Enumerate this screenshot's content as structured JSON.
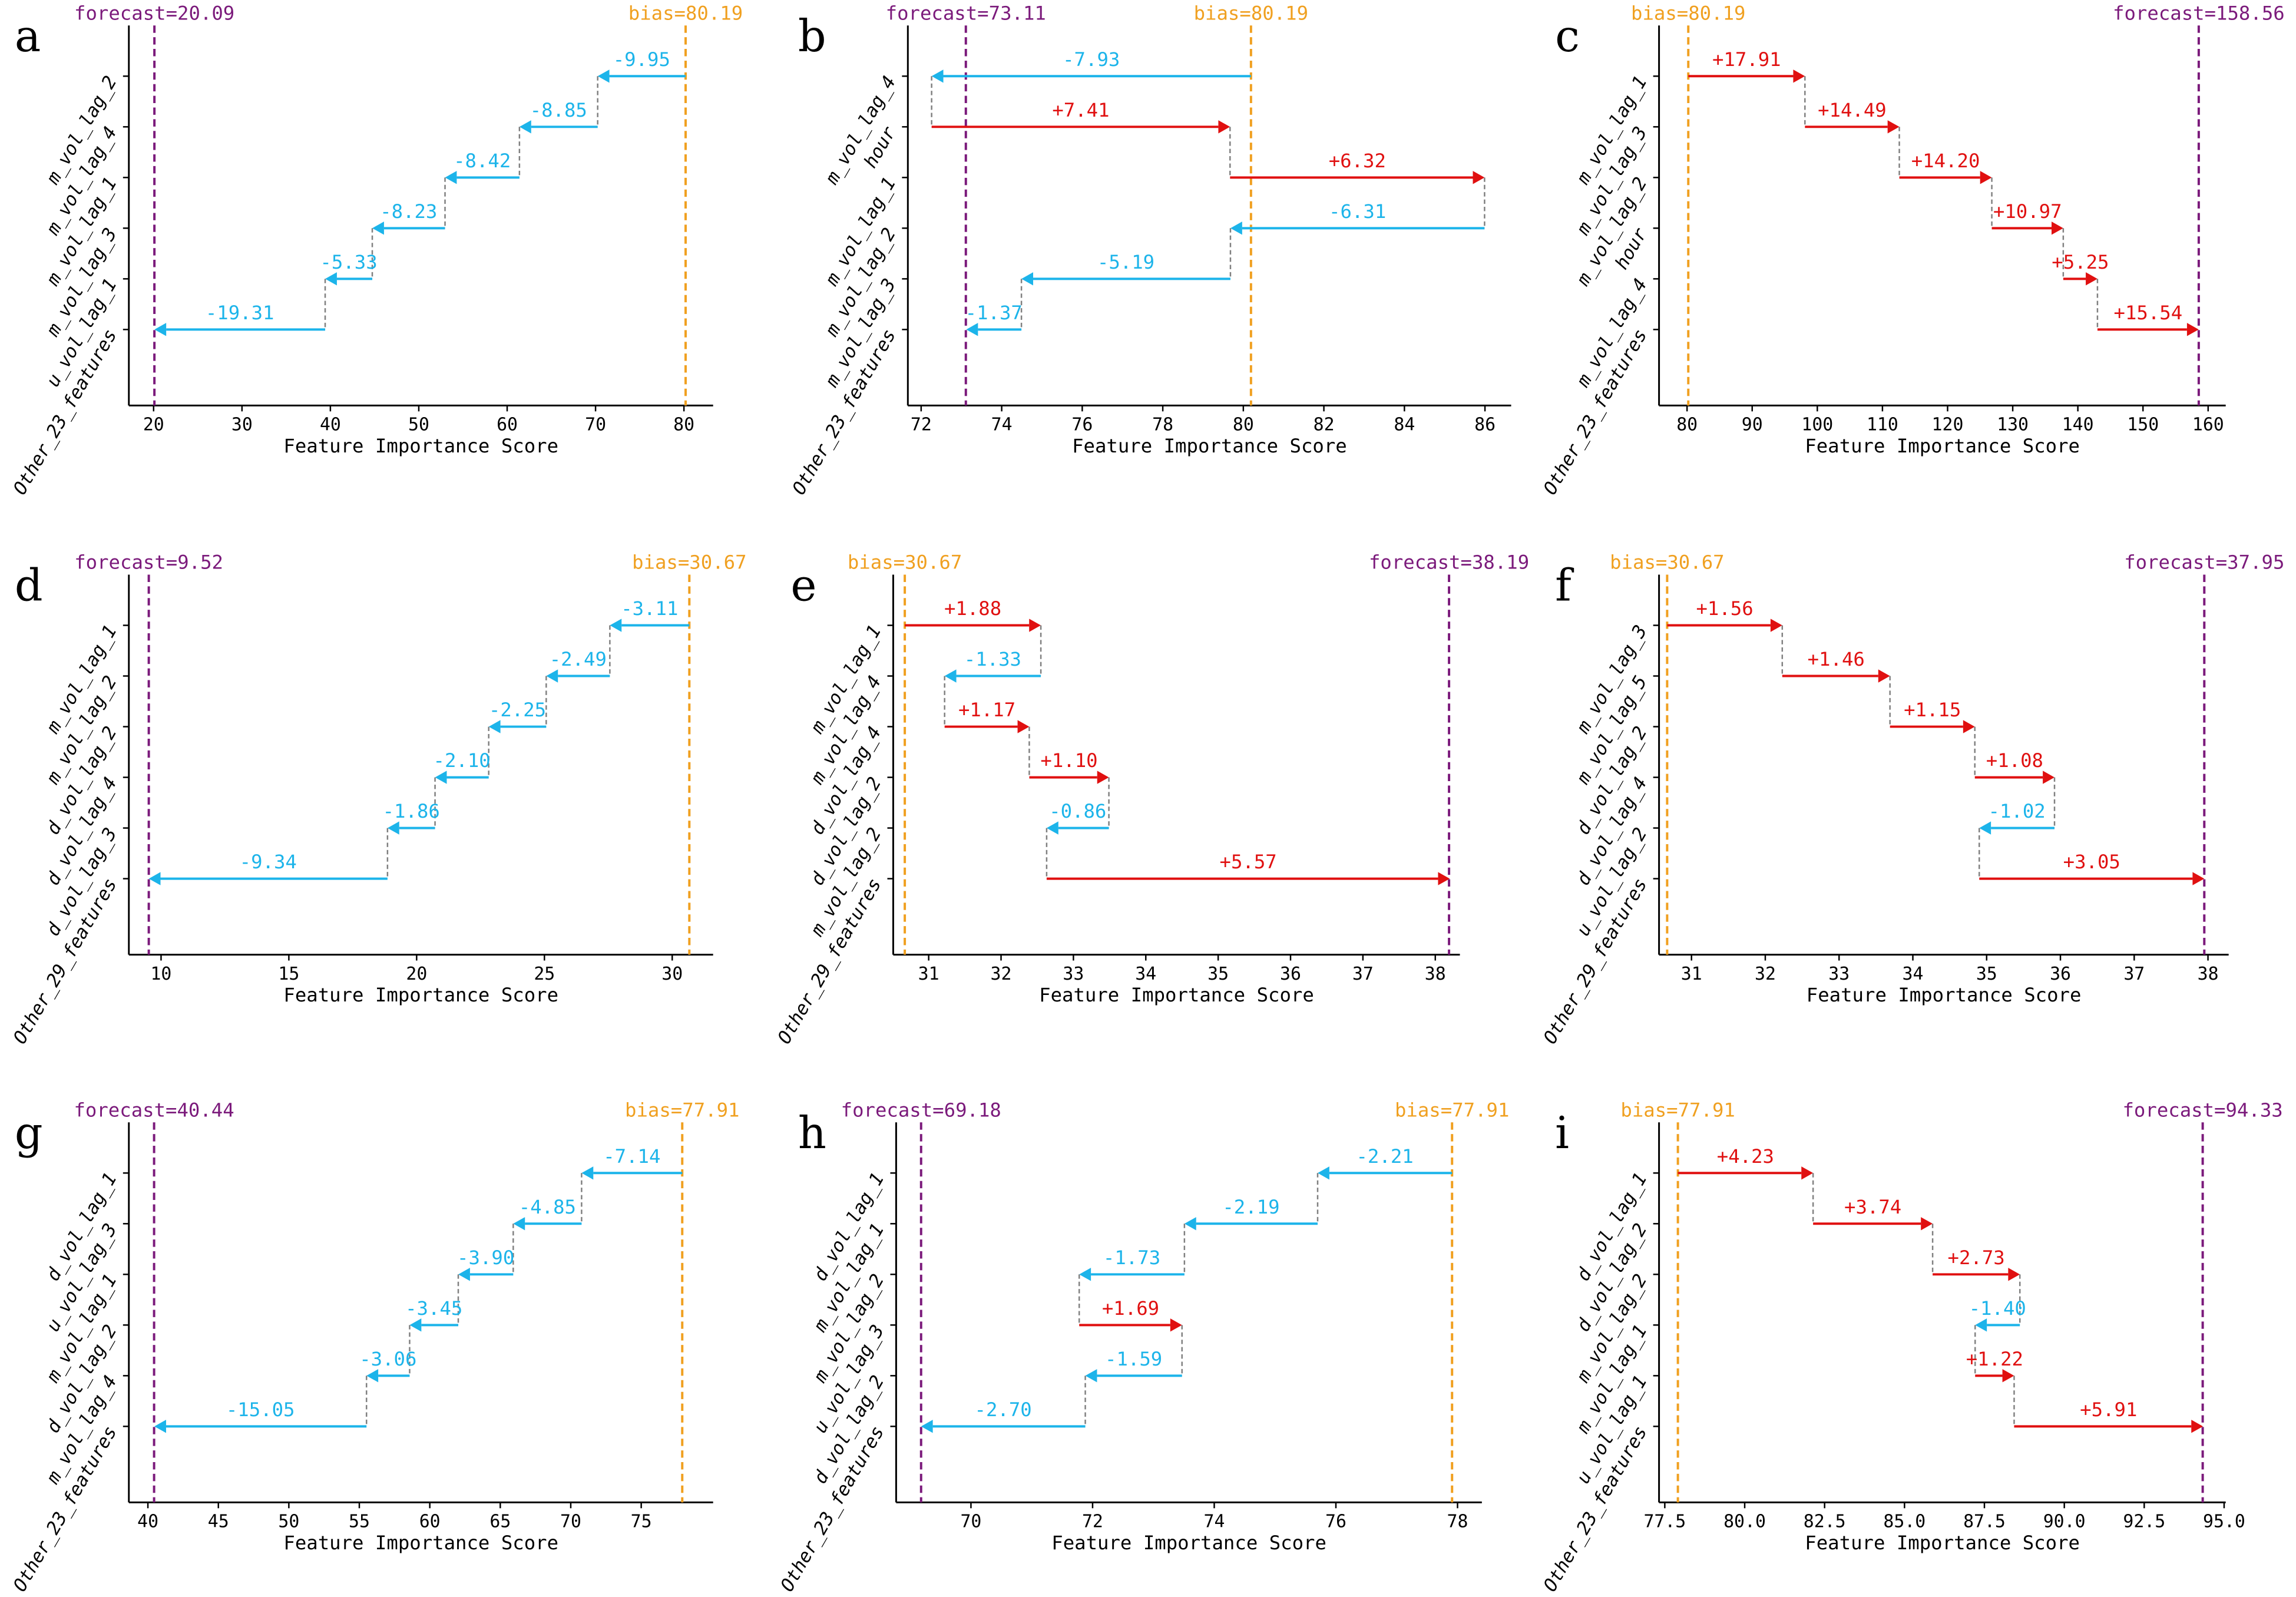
{
  "colors": {
    "negative": "#1cb4ea",
    "positive": "#e01010",
    "forecast_line": "#7b1a7b",
    "bias_line": "#f0a020",
    "connector": "#808080",
    "axis": "#000000"
  },
  "chart_data": [
    {
      "type": "waterfall",
      "panel": "a",
      "xlabel": "Feature Importance Score",
      "bias": 80.19,
      "forecast": 20.09,
      "bias_label": "bias=80.19",
      "forecast_label": "forecast=20.09",
      "features": [
        "m_vol_lag_2",
        "m_vol_lag_4",
        "m_vol_lag_1",
        "m_vol_lag_3",
        "u_vol_lag_1",
        "Other_23_features"
      ],
      "values": [
        -9.95,
        -8.85,
        -8.42,
        -8.23,
        -5.33,
        -19.31
      ],
      "xticks": [
        "20",
        "30",
        "40",
        "50",
        "60",
        "70",
        "80"
      ],
      "xlim": [
        17.2,
        83.3
      ]
    },
    {
      "type": "waterfall",
      "panel": "b",
      "xlabel": "Feature Importance Score",
      "bias": 80.19,
      "forecast": 73.11,
      "bias_label": "bias=80.19",
      "forecast_label": "forecast=73.11",
      "features": [
        "m_vol_lag_4",
        "hour",
        "m_vol_lag_1",
        "m_vol_lag_2",
        "m_vol_lag_3",
        "Other_23_features"
      ],
      "values": [
        -7.93,
        7.41,
        6.32,
        -6.31,
        -5.19,
        -1.37
      ],
      "xticks": [
        "72",
        "74",
        "76",
        "78",
        "80",
        "82",
        "84",
        "86"
      ],
      "xlim": [
        71.67,
        86.65
      ]
    },
    {
      "type": "waterfall",
      "panel": "c",
      "xlabel": "Feature Importance Score",
      "bias": 80.19,
      "forecast": 158.56,
      "bias_label": "bias=80.19",
      "forecast_label": "forecast=158.56",
      "features": [
        "m_vol_lag_1",
        "m_vol_lag_3",
        "m_vol_lag_2",
        "hour",
        "m_vol_lag_4",
        "Other_23_features"
      ],
      "values": [
        17.91,
        14.49,
        14.2,
        10.97,
        5.25,
        15.54
      ],
      "xticks": [
        "80",
        "90",
        "100",
        "110",
        "120",
        "130",
        "140",
        "150",
        "160"
      ],
      "xlim": [
        75.7,
        162.7
      ]
    },
    {
      "type": "waterfall",
      "panel": "d",
      "xlabel": "Feature Importance Score",
      "bias": 30.67,
      "forecast": 9.52,
      "bias_label": "bias=30.67",
      "forecast_label": "forecast=9.52",
      "features": [
        "m_vol_lag_1",
        "m_vol_lag_2",
        "d_vol_lag_2",
        "d_vol_lag_4",
        "d_vol_lag_3",
        "Other_29_features"
      ],
      "values": [
        -3.11,
        -2.49,
        -2.25,
        -2.1,
        -1.86,
        -9.34
      ],
      "xticks": [
        "10",
        "15",
        "20",
        "25",
        "30"
      ],
      "xlim": [
        8.74,
        31.6
      ]
    },
    {
      "type": "waterfall",
      "panel": "e",
      "xlabel": "Feature Importance Score",
      "bias": 30.67,
      "forecast": 38.19,
      "bias_label": "bias=30.67",
      "forecast_label": "forecast=38.19",
      "features": [
        "m_vol_lag_1",
        "m_vol_lag_4",
        "d_vol_lag_4",
        "d_vol_lag_2",
        "m_vol_lag_2",
        "Other_29_features"
      ],
      "values": [
        1.88,
        -1.33,
        1.17,
        1.1,
        -0.86,
        5.57
      ],
      "xticks": [
        "31",
        "32",
        "33",
        "34",
        "35",
        "36",
        "37",
        "38"
      ],
      "xlim": [
        30.51,
        38.34
      ]
    },
    {
      "type": "waterfall",
      "panel": "f",
      "xlabel": "Feature Importance Score",
      "bias": 30.67,
      "forecast": 37.95,
      "bias_label": "bias=30.67",
      "forecast_label": "forecast=37.95",
      "features": [
        "m_vol_lag_3",
        "m_vol_lag_5",
        "d_vol_lag_2",
        "d_vol_lag_4",
        "u_vol_lag_2",
        "Other_29_features"
      ],
      "values": [
        1.56,
        1.46,
        1.15,
        1.08,
        -1.02,
        3.05
      ],
      "xticks": [
        "31",
        "32",
        "33",
        "34",
        "35",
        "36",
        "37",
        "38"
      ],
      "xlim": [
        30.56,
        38.28
      ]
    },
    {
      "type": "waterfall",
      "panel": "g",
      "xlabel": "Feature Importance Score",
      "bias": 77.91,
      "forecast": 40.44,
      "bias_label": "bias=77.91",
      "forecast_label": "forecast=40.44",
      "features": [
        "d_vol_lag_1",
        "u_vol_lag_3",
        "m_vol_lag_1",
        "d_vol_lag_2",
        "m_vol_lag_4",
        "Other_23_features"
      ],
      "values": [
        -7.14,
        -4.85,
        -3.9,
        -3.45,
        -3.06,
        -15.05
      ],
      "xticks": [
        "40",
        "45",
        "50",
        "55",
        "60",
        "65",
        "70",
        "75"
      ],
      "xlim": [
        38.65,
        80.1
      ]
    },
    {
      "type": "waterfall",
      "panel": "h",
      "xlabel": "Feature Importance Score",
      "bias": 77.91,
      "forecast": 69.18,
      "bias_label": "bias=77.91",
      "forecast_label": "forecast=69.18",
      "features": [
        "d_vol_lag_1",
        "m_vol_lag_1",
        "m_vol_lag_2",
        "u_vol_lag_3",
        "d_vol_lag_2",
        "Other_23_features"
      ],
      "values": [
        -2.21,
        -2.19,
        -1.73,
        1.69,
        -1.59,
        -2.7
      ],
      "xticks": [
        "70",
        "72",
        "74",
        "76",
        "78"
      ],
      "xlim": [
        68.77,
        78.4
      ]
    },
    {
      "type": "waterfall",
      "panel": "i",
      "xlabel": "Feature Importance Score",
      "bias": 77.91,
      "forecast": 94.33,
      "bias_label": "bias=77.91",
      "forecast_label": "forecast=94.33",
      "features": [
        "d_vol_lag_1",
        "d_vol_lag_2",
        "m_vol_lag_2",
        "m_vol_lag_1",
        "u_vol_lag_1",
        "Other_23_features"
      ],
      "values": [
        4.23,
        3.74,
        2.73,
        -1.4,
        1.22,
        5.91
      ],
      "xticks": [
        "77.5",
        "80.0",
        "82.5",
        "85.0",
        "87.5",
        "90.0",
        "92.5",
        "95.0"
      ],
      "xlim": [
        77.32,
        95.05
      ]
    }
  ]
}
